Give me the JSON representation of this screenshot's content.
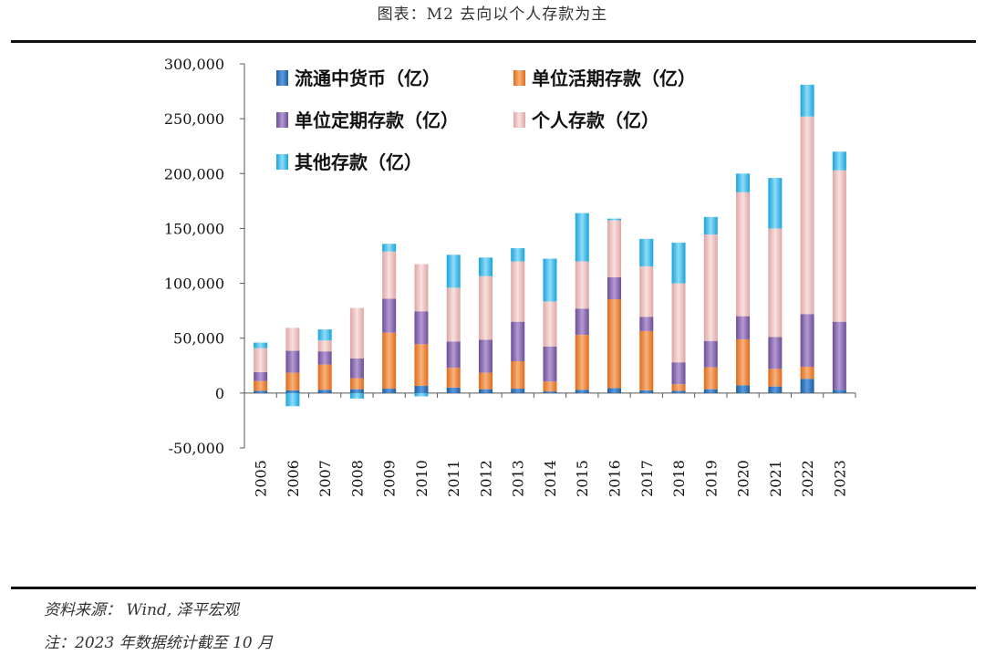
{
  "title": "图表：M2 去向以个人存款为主",
  "source": "资料来源： Wind, 泽平宏观",
  "note": "注：2023 年数据统计截至 10 月",
  "chart_data": {
    "type": "bar",
    "stacked": true,
    "categories": [
      "2005",
      "2006",
      "2007",
      "2008",
      "2009",
      "2010",
      "2011",
      "2012",
      "2013",
      "2014",
      "2015",
      "2016",
      "2017",
      "2018",
      "2019",
      "2020",
      "2021",
      "2022",
      "2023"
    ],
    "ylim": [
      -50000,
      300000
    ],
    "yticks": [
      -50000,
      0,
      50000,
      100000,
      150000,
      200000,
      250000,
      300000
    ],
    "ytick_labels": [
      "-50,000",
      "0",
      "50,000",
      "100,000",
      "150,000",
      "200,000",
      "250,000",
      "300,000"
    ],
    "legend_position": "top-left",
    "series": [
      {
        "name": "流通中货币（亿）",
        "color": "#2e75b6",
        "values": [
          2000,
          2500,
          3000,
          3500,
          4000,
          6500,
          5000,
          3500,
          4000,
          1500,
          3000,
          4500,
          2500,
          2000,
          3500,
          7000,
          6000,
          13000,
          3000
        ]
      },
      {
        "name": "单位活期存款（亿）",
        "color": "#ed7d31",
        "values": [
          9000,
          16000,
          23000,
          10000,
          51000,
          38000,
          18000,
          15000,
          25000,
          9000,
          50000,
          81000,
          54000,
          6000,
          20000,
          42000,
          16000,
          11000,
          0
        ]
      },
      {
        "name": "单位定期存款（亿）",
        "color": "#8064a2",
        "values": [
          8000,
          20000,
          12000,
          18000,
          31000,
          30000,
          24000,
          30000,
          36000,
          32000,
          24000,
          20000,
          13000,
          20000,
          24000,
          21000,
          29000,
          48000,
          62000
        ]
      },
      {
        "name": "个人存款（亿）",
        "color": "#e6b9b8",
        "values": [
          22000,
          21000,
          10000,
          46000,
          43000,
          43000,
          49000,
          58000,
          55000,
          41000,
          43000,
          52000,
          46000,
          72000,
          97000,
          113000,
          99000,
          180000,
          138000
        ]
      },
      {
        "name": "其他存款（亿）",
        "color": "#33b7e8",
        "values": [
          5000,
          -12000,
          10000,
          -5000,
          7000,
          -3000,
          30000,
          17000,
          12000,
          39000,
          44000,
          1500,
          25000,
          37000,
          16000,
          17000,
          46000,
          29000,
          17000
        ]
      }
    ]
  }
}
